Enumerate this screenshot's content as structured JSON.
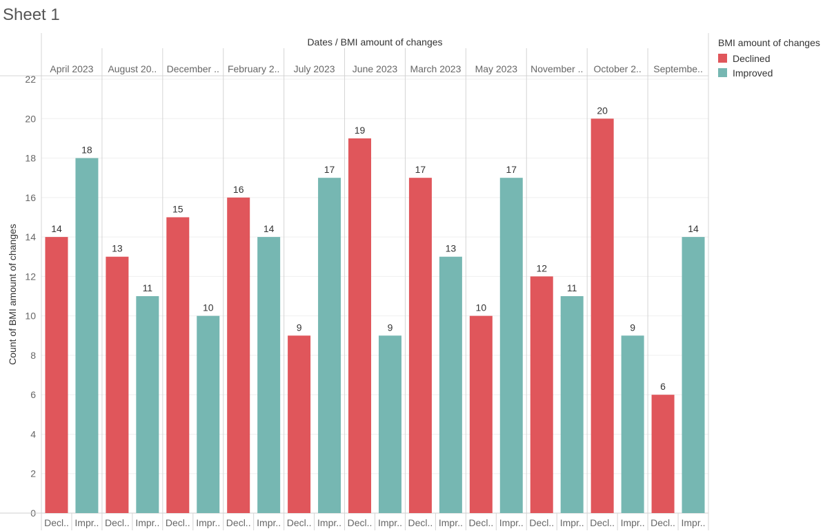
{
  "sheet": {
    "title": "Sheet 1"
  },
  "legend": {
    "title": "BMI amount of changes",
    "items": [
      {
        "label": "Declined",
        "color": "#E0565B"
      },
      {
        "label": "Improved",
        "color": "#76B7B2"
      }
    ]
  },
  "chart_data": {
    "type": "bar",
    "title": "Dates / BMI amount of changes",
    "ylabel": "Count of BMI amount of changes",
    "ylim": [
      0,
      22
    ],
    "y_ticks": [
      0,
      2,
      4,
      6,
      8,
      10,
      12,
      14,
      16,
      18,
      20,
      22
    ],
    "grid": true,
    "legend_position": "right",
    "categories": [
      "April 2023",
      "August 20..",
      "December ..",
      "February 2..",
      "July 2023",
      "June 2023",
      "March 2023",
      "May 2023",
      "November ..",
      "October 2..",
      "Septembe.."
    ],
    "sub_category_labels": [
      "Decl..",
      "Impr.."
    ],
    "series": [
      {
        "name": "Declined",
        "color": "#E0565B",
        "values": [
          14,
          13,
          15,
          16,
          9,
          19,
          17,
          10,
          12,
          20,
          6
        ]
      },
      {
        "name": "Improved",
        "color": "#76B7B2",
        "values": [
          18,
          11,
          10,
          14,
          17,
          9,
          13,
          17,
          11,
          9,
          14
        ]
      }
    ]
  }
}
